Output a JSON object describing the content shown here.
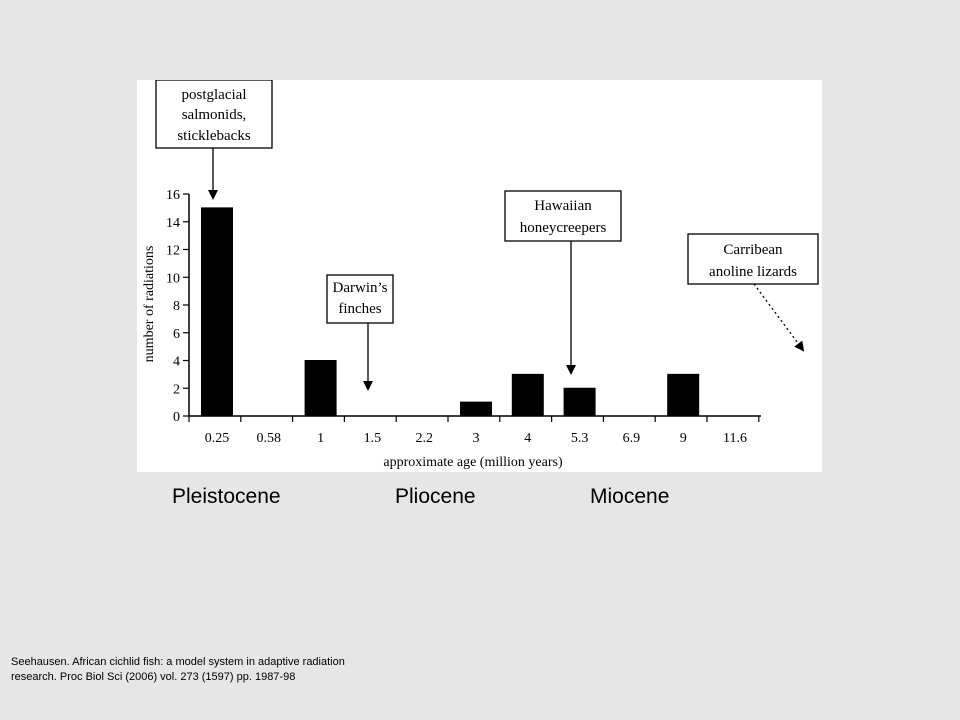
{
  "chart_data": {
    "type": "bar",
    "categories": [
      "0.25",
      "0.58",
      "1",
      "1.5",
      "2.2",
      "3",
      "4",
      "5.3",
      "6.9",
      "9",
      "11.6"
    ],
    "values": [
      15,
      0,
      4,
      0,
      0,
      1,
      3,
      2,
      0,
      3,
      0
    ],
    "yticks": [
      "0",
      "2",
      "4",
      "6",
      "8",
      "10",
      "12",
      "14",
      "16"
    ],
    "ylim": [
      0,
      16
    ],
    "xlabel": "approximate age (million years)",
    "ylabel": "number of radiations",
    "bar_color": "#000000",
    "annotations": [
      {
        "lines": [
          "postglacial",
          "salmonids,",
          "sticklebacks"
        ],
        "points_to": "0.25",
        "arrow": "solid"
      },
      {
        "lines": [
          "Darwin’s",
          "finches"
        ],
        "points_to": "1.5",
        "arrow": "solid"
      },
      {
        "lines": [
          "Hawaiian",
          "honeycreepers"
        ],
        "points_to": "5.3",
        "arrow": "solid"
      },
      {
        "lines": [
          "Carribean",
          "anoline lizards"
        ],
        "points_to": "beyond 11.6",
        "arrow": "dotted"
      }
    ]
  },
  "epochs": [
    "Pleistocene",
    "Pliocene",
    "Miocene"
  ],
  "citation": {
    "line1": "Seehausen.  African cichlid fish: a model system in adaptive radiation",
    "line2": "research.  Proc Biol Sci (2006)  vol. 273 (1597)  pp. 1987-98"
  }
}
